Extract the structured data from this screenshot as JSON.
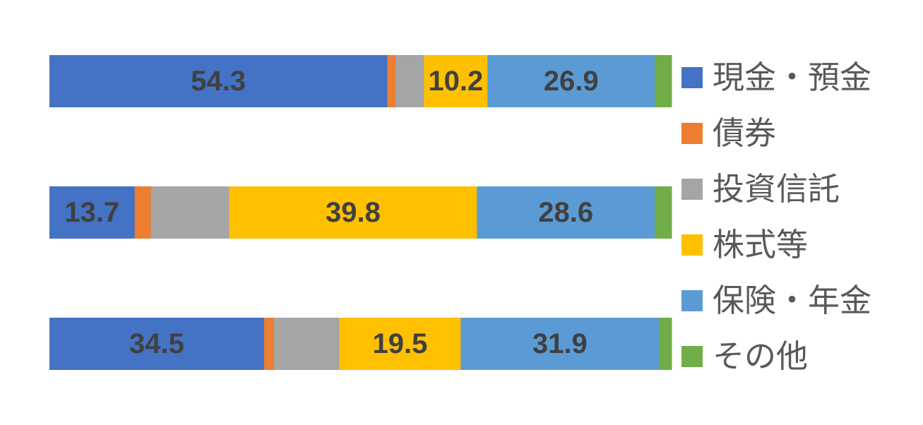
{
  "chart_data": {
    "type": "bar",
    "orientation": "horizontal",
    "stacked": "percent",
    "xlim": [
      0,
      100
    ],
    "grid": false,
    "legend_position": "right",
    "series": [
      {
        "name": "現金・預金",
        "color": "#4472C4",
        "values": [
          54.3,
          13.7,
          34.5
        ],
        "labels": [
          "54.3",
          "13.7",
          "34.5"
        ]
      },
      {
        "name": "債券",
        "color": "#ED7D31",
        "values": [
          1.3,
          2.6,
          1.6
        ],
        "labels": [
          "",
          "",
          ""
        ]
      },
      {
        "name": "投資信託",
        "color": "#A5A5A5",
        "values": [
          4.6,
          12.6,
          10.5
        ],
        "labels": [
          "",
          "",
          ""
        ]
      },
      {
        "name": "株式等",
        "color": "#FFC000",
        "values": [
          10.2,
          39.8,
          19.5
        ],
        "labels": [
          "10.2",
          "39.8",
          "19.5"
        ]
      },
      {
        "name": "保険・年金",
        "color": "#5B9BD5",
        "values": [
          26.9,
          28.6,
          31.9
        ],
        "labels": [
          "26.9",
          "28.6",
          "31.9"
        ]
      },
      {
        "name": "その他",
        "color": "#70AD47",
        "values": [
          2.7,
          2.7,
          2.0
        ],
        "labels": [
          "",
          "",
          ""
        ]
      }
    ]
  }
}
